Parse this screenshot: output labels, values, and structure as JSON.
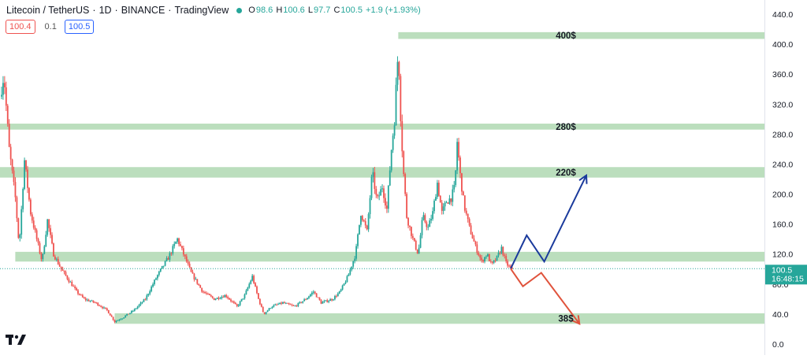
{
  "header": {
    "pair": "Litecoin / TetherUS",
    "interval": "1D",
    "exchange": "BINANCE",
    "source": "TradingView",
    "ohlc": {
      "o_label": "O",
      "o": "98.6",
      "h_label": "H",
      "h": "100.6",
      "l_label": "L",
      "l": "97.7",
      "c_label": "C",
      "c": "100.5",
      "change": "+1.9 (+1.93%)"
    }
  },
  "indicator_row": {
    "left_value": "100.4",
    "mid_value": "0.1",
    "right_value": "100.5"
  },
  "price_tag": {
    "price": "100.5",
    "countdown": "16:48:15"
  },
  "colors": {
    "zone": "#b7dcb9",
    "up_candle": "#26a69a",
    "down_candle": "#ef5350",
    "bull_path": "#1a3a9c",
    "bear_path": "#e0533c",
    "price_tag": "#26a69a"
  },
  "chart_data": {
    "type": "candlestick",
    "y_axis": {
      "min": 0,
      "max": 440,
      "ticks": [
        "440.0",
        "400.0",
        "360.0",
        "320.0",
        "280.0",
        "240.0",
        "200.0",
        "160.0",
        "120.0",
        "80.0",
        "40.0",
        "0.0"
      ]
    },
    "x_range_bars": [
      0,
      1000
    ],
    "support_resistance_zones": [
      {
        "label": "400$",
        "low": 407,
        "high": 416,
        "x_start_bar": 521
      },
      {
        "label": "280$",
        "low": 286,
        "high": 294,
        "x_start_bar": 0
      },
      {
        "label": "220$",
        "low": 222,
        "high": 236,
        "x_start_bar": 0
      },
      {
        "label": "",
        "low": 110,
        "high": 123,
        "x_start_bar": 20
      },
      {
        "label": "38$",
        "low": 27,
        "high": 41,
        "x_start_bar": 150
      }
    ],
    "current_price": 100.5,
    "price_path_waypoints": [
      [
        0,
        330
      ],
      [
        5,
        360
      ],
      [
        12,
        260
      ],
      [
        20,
        195
      ],
      [
        25,
        130
      ],
      [
        32,
        245
      ],
      [
        40,
        175
      ],
      [
        48,
        140
      ],
      [
        55,
        110
      ],
      [
        62,
        165
      ],
      [
        70,
        120
      ],
      [
        80,
        100
      ],
      [
        90,
        85
      ],
      [
        100,
        70
      ],
      [
        110,
        60
      ],
      [
        125,
        55
      ],
      [
        140,
        45
      ],
      [
        150,
        30
      ],
      [
        160,
        35
      ],
      [
        175,
        45
      ],
      [
        190,
        60
      ],
      [
        205,
        90
      ],
      [
        220,
        115
      ],
      [
        232,
        140
      ],
      [
        240,
        120
      ],
      [
        250,
        95
      ],
      [
        265,
        70
      ],
      [
        280,
        60
      ],
      [
        295,
        65
      ],
      [
        310,
        50
      ],
      [
        320,
        65
      ],
      [
        330,
        90
      ],
      [
        338,
        60
      ],
      [
        345,
        40
      ],
      [
        355,
        50
      ],
      [
        370,
        55
      ],
      [
        385,
        50
      ],
      [
        400,
        60
      ],
      [
        410,
        70
      ],
      [
        420,
        55
      ],
      [
        435,
        60
      ],
      [
        445,
        70
      ],
      [
        455,
        90
      ],
      [
        465,
        120
      ],
      [
        472,
        175
      ],
      [
        480,
        150
      ],
      [
        487,
        230
      ],
      [
        493,
        190
      ],
      [
        500,
        210
      ],
      [
        506,
        180
      ],
      [
        512,
        260
      ],
      [
        516,
        300
      ],
      [
        519,
        360
      ],
      [
        521,
        395
      ],
      [
        524,
        305
      ],
      [
        527,
        240
      ],
      [
        532,
        170
      ],
      [
        540,
        140
      ],
      [
        547,
        120
      ],
      [
        553,
        170
      ],
      [
        560,
        155
      ],
      [
        566,
        175
      ],
      [
        572,
        215
      ],
      [
        578,
        175
      ],
      [
        584,
        190
      ],
      [
        590,
        195
      ],
      [
        595,
        210
      ],
      [
        598,
        270
      ],
      [
        602,
        225
      ],
      [
        607,
        185
      ],
      [
        614,
        155
      ],
      [
        622,
        130
      ],
      [
        630,
        110
      ],
      [
        637,
        120
      ],
      [
        643,
        105
      ],
      [
        650,
        115
      ],
      [
        656,
        128
      ],
      [
        662,
        108
      ],
      [
        668,
        100.5
      ]
    ],
    "bullish_projection": [
      [
        668,
        100.5
      ],
      [
        689,
        145
      ],
      [
        712,
        110
      ],
      [
        767,
        225
      ]
    ],
    "bearish_projection": [
      [
        668,
        100.5
      ],
      [
        684,
        77
      ],
      [
        708,
        95
      ],
      [
        758,
        27
      ]
    ]
  }
}
